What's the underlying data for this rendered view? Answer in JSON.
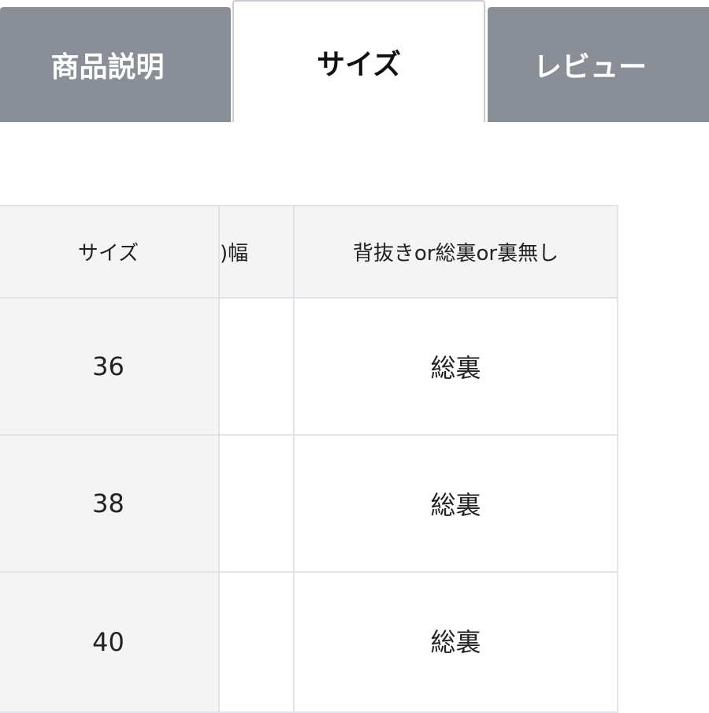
{
  "tabs": [
    {
      "label": "商品説明",
      "active": false
    },
    {
      "label": "サイズ",
      "active": true
    },
    {
      "label": "レビュー",
      "active": false
    }
  ],
  "table": {
    "headers": [
      "サイズ",
      ")幅",
      "背抜きor総裏or裏無し"
    ],
    "rows": [
      [
        "36",
        "",
        "総裏"
      ],
      [
        "38",
        "",
        "総裏"
      ],
      [
        "40",
        "",
        "総裏"
      ]
    ]
  },
  "colors": {
    "inactive_tab": "#8a8e96",
    "header_bg": "#f4f4f5",
    "border": "#e1e3e8"
  }
}
